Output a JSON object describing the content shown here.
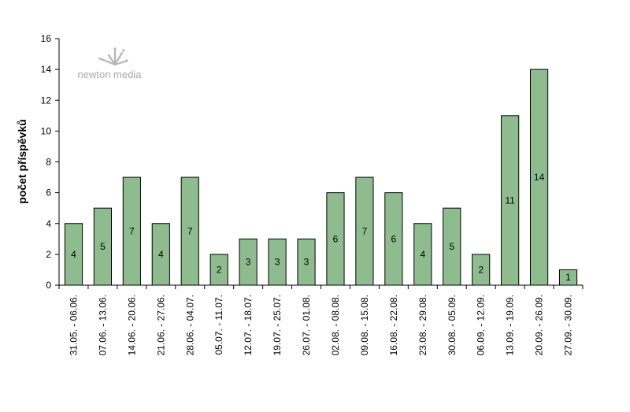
{
  "logo": {
    "text": "newton media",
    "icon": "newton-media-logo-icon"
  },
  "chart_data": {
    "type": "bar",
    "ylabel": "počet příspěvků",
    "xlabel": "",
    "ylim": [
      0,
      16
    ],
    "yticks": [
      0,
      2,
      4,
      6,
      8,
      10,
      12,
      14,
      16
    ],
    "grid": false,
    "legend": "none",
    "bar_color": "#8fbc8f",
    "categories": [
      "31.05. - 06.06.",
      "07.06. - 13.06.",
      "14.06. - 20.06.",
      "21.06. - 27.06.",
      "28.06. - 04.07.",
      "05.07. - 11.07.",
      "12.07. - 18.07.",
      "19.07. - 25.07.",
      "26.07. - 01.08.",
      "02.08. - 08.08.",
      "09.08. - 15.08.",
      "16.08. - 22.08.",
      "23.08. - 29.08.",
      "30.08. - 05.09.",
      "06.09. - 12.09.",
      "13.09. - 19.09.",
      "20.09. - 26.09.",
      "27.09. - 30.09."
    ],
    "values": [
      4,
      5,
      7,
      4,
      7,
      2,
      3,
      3,
      3,
      6,
      7,
      6,
      4,
      5,
      2,
      11,
      14,
      1
    ]
  }
}
